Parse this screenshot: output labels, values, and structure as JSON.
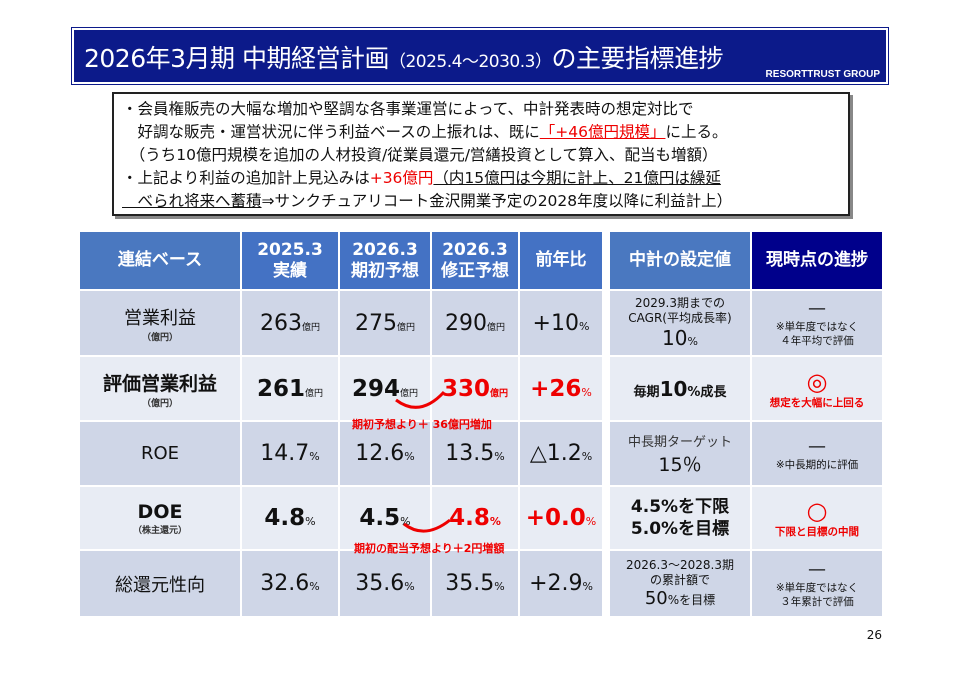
{
  "title": {
    "main": "2026年3月期  中期経営計画",
    "period": "（2025.4～2030.3）",
    "suffix": "の主要指標進捗",
    "brand": "RESORTTRUST GROUP"
  },
  "notes": {
    "l1": "・会員権販売の大幅な増加や堅調な各事業運営によって、中計発表時の想定対比で",
    "l2a": "　好調な販売・運営状況に伴う利益ベースの上振れは、既に",
    "l2b": "「+46億円規模」",
    "l2c": "に上る。",
    "l3": "　（うち10億円規模を追加の人材投資/従業員還元/営繕投資として算入、配当も増額）",
    "l4a": "・上記より利益の追加計上見込みは",
    "l4b": "+36億円",
    "l4c": "（内15億円は今期に計上、21億円は繰延",
    "l5a": "　べられ将来へ蓄積",
    "l5b": "⇒サンクチュアリコート金沢開業予定の2028年度以降に利益計上）"
  },
  "headers": {
    "base": "連結ベース",
    "c1a": "2025.3",
    "c1b": "実績",
    "c2a": "2026.3",
    "c2b": "期初予想",
    "c3a": "2026.3",
    "c3b": "修正予想",
    "c4": "前年比",
    "t1": "中計の設定値",
    "t2": "現時点の進捗"
  },
  "rows": [
    {
      "label": "営業利益",
      "sub": "（億円）",
      "v1": "263",
      "v2": "275",
      "v3": "290",
      "u": "億円",
      "yoy": "+10",
      "p": "%",
      "target": [
        "2029.3期までの",
        "CAGR(平均成長率)",
        "10",
        "%"
      ],
      "mark": "—",
      "note": [
        "※単年度ではなく",
        "４年平均で評価"
      ]
    },
    {
      "label": "評価営業利益",
      "sub": "（億円）",
      "v1": "261",
      "v2": "294",
      "v3": "330",
      "u": "億円",
      "yoy": "+26",
      "p": "%",
      "target": [
        "毎期",
        "10",
        "%成長"
      ],
      "mark": "◎",
      "note": [
        "想定を大幅に上回る"
      ]
    },
    {
      "label": "ROE",
      "v1": "14.7",
      "v2": "12.6",
      "v3": "13.5",
      "u": "%",
      "yoy": "△1.2",
      "p": "%",
      "target": [
        "中長期ターゲット",
        "15％"
      ],
      "mark": "—",
      "note": [
        "※中長期的に評価"
      ]
    },
    {
      "label": "DOE",
      "sub": "（株主還元）",
      "v1": "4.8",
      "v2": "4.5",
      "v3": "4.8",
      "u": "%",
      "yoy": "+0.0",
      "p": "%",
      "target": [
        "4.5%を下限",
        "5.0%を目標"
      ],
      "mark": "○",
      "note": [
        "下限と目標の中間"
      ]
    },
    {
      "label": "総還元性向",
      "v1": "32.6",
      "v2": "35.6",
      "v3": "35.5",
      "u": "%",
      "yoy": "+2.9",
      "p": "%",
      "target": [
        "2026.3～2028.3期",
        "の累計額で",
        "50",
        "%を目標"
      ],
      "mark": "—",
      "note": [
        "※単年度ではなく",
        "３年累計で評価"
      ]
    }
  ],
  "annotations": {
    "a1": "期初予想より＋ 36億円増加",
    "a2": "期初の配当予想より＋2円増額"
  },
  "page": "26",
  "colors": {
    "navy": "#0c1a8a",
    "blue": "#4a78c0",
    "red": "#e00000"
  }
}
